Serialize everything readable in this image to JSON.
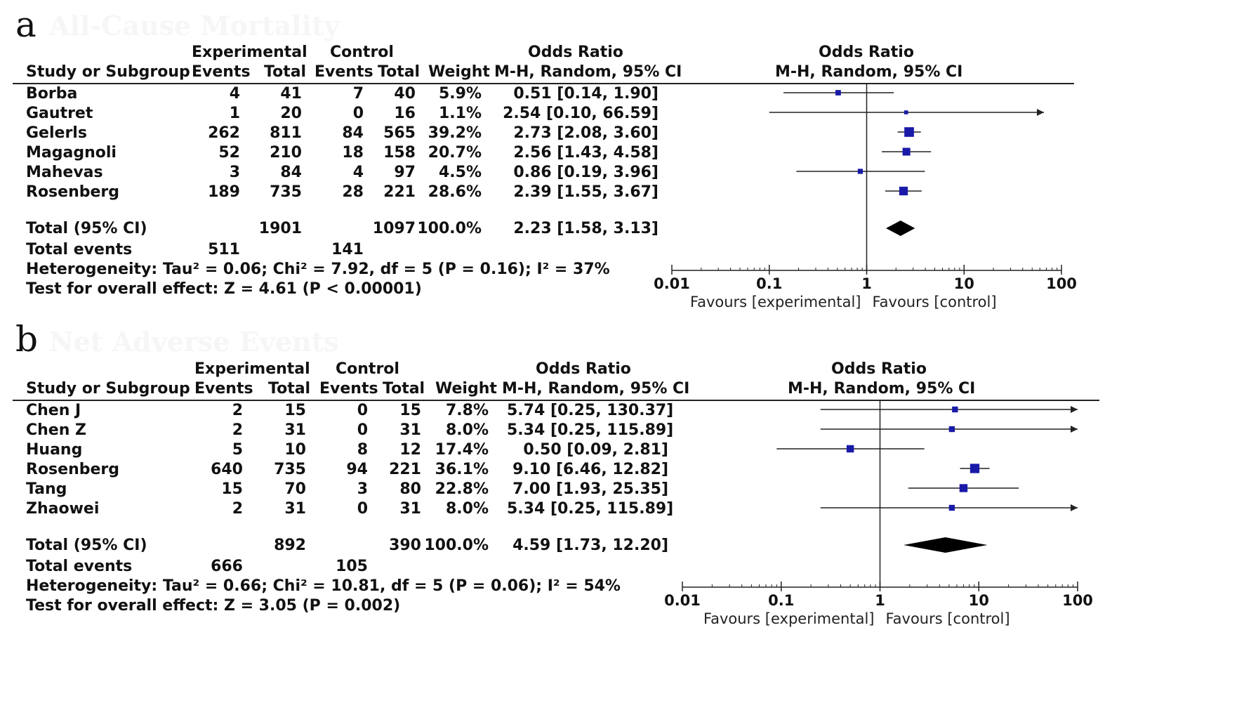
{
  "chart_data": [
    {
      "type": "forest",
      "panel_label": "a",
      "panel_title": "All-Cause Mortality",
      "header": {
        "group1": "Experimental",
        "group2": "Control",
        "effect": "Odds Ratio",
        "col_study": "Study or Subgroup",
        "col_events": "Events",
        "col_total": "Total",
        "col_weight": "Weight",
        "col_method": "M-H, Random, 95% CI",
        "plot_title": "Odds Ratio",
        "plot_method": "M-H, Random, 95% CI"
      },
      "studies": [
        {
          "name": "Borba",
          "exp_events": "4",
          "exp_total": "41",
          "ctl_events": "7",
          "ctl_total": "40",
          "weight": "5.9%",
          "ci_text": "0.51 [0.14, 1.90]",
          "or": 0.51,
          "lo": 0.14,
          "hi": 1.9
        },
        {
          "name": "Gautret",
          "exp_events": "1",
          "exp_total": "20",
          "ctl_events": "0",
          "ctl_total": "16",
          "weight": "1.1%",
          "ci_text": "2.54 [0.10, 66.59]",
          "or": 2.54,
          "lo": 0.1,
          "hi": 66.59
        },
        {
          "name": "Gelerls",
          "exp_events": "262",
          "exp_total": "811",
          "ctl_events": "84",
          "ctl_total": "565",
          "weight": "39.2%",
          "ci_text": "2.73 [2.08, 3.60]",
          "or": 2.73,
          "lo": 2.08,
          "hi": 3.6
        },
        {
          "name": "Magagnoli",
          "exp_events": "52",
          "exp_total": "210",
          "ctl_events": "18",
          "ctl_total": "158",
          "weight": "20.7%",
          "ci_text": "2.56 [1.43, 4.58]",
          "or": 2.56,
          "lo": 1.43,
          "hi": 4.58
        },
        {
          "name": "Mahevas",
          "exp_events": "3",
          "exp_total": "84",
          "ctl_events": "4",
          "ctl_total": "97",
          "weight": "4.5%",
          "ci_text": "0.86 [0.19, 3.96]",
          "or": 0.86,
          "lo": 0.19,
          "hi": 3.96
        },
        {
          "name": "Rosenberg",
          "exp_events": "189",
          "exp_total": "735",
          "ctl_events": "28",
          "ctl_total": "221",
          "weight": "28.6%",
          "ci_text": "2.39 [1.55, 3.67]",
          "or": 2.39,
          "lo": 1.55,
          "hi": 3.67
        }
      ],
      "total": {
        "label": "Total (95% CI)",
        "exp_total": "1901",
        "ctl_total": "1097",
        "weight": "100.0%",
        "ci_text": "2.23 [1.58, 3.13]",
        "or": 2.23,
        "lo": 1.58,
        "hi": 3.13
      },
      "total_events": {
        "label": "Total events",
        "exp": "511",
        "ctl": "141"
      },
      "heterogeneity": "Heterogeneity: Tau² = 0.06; Chi² = 7.92, df = 5 (P = 0.16); I² = 37%",
      "overall_effect": "Test for overall effect: Z = 4.61 (P < 0.00001)",
      "axis": {
        "scale": "log",
        "range": [
          0.01,
          100
        ],
        "ticks": [
          "0.01",
          "0.1",
          "1",
          "10",
          "100"
        ],
        "tick_values": [
          0.01,
          0.1,
          1,
          10,
          100
        ],
        "favours_left": "Favours [experimental]",
        "favours_right": "Favours [control]"
      }
    },
    {
      "type": "forest",
      "panel_label": "b",
      "panel_title": "Net Adverse Events",
      "header": {
        "group1": "Experimental",
        "group2": "Control",
        "effect": "Odds Ratio",
        "col_study": "Study or Subgroup",
        "col_events": "Events",
        "col_total": "Total",
        "col_weight": "Weight",
        "col_method": "M-H, Random, 95% CI",
        "plot_title": "Odds Ratio",
        "plot_method": "M-H, Random, 95% CI"
      },
      "studies": [
        {
          "name": "Chen J",
          "exp_events": "2",
          "exp_total": "15",
          "ctl_events": "0",
          "ctl_total": "15",
          "weight": "7.8%",
          "ci_text": "5.74 [0.25, 130.37]",
          "or": 5.74,
          "lo": 0.25,
          "hi": 130.37
        },
        {
          "name": "Chen Z",
          "exp_events": "2",
          "exp_total": "31",
          "ctl_events": "0",
          "ctl_total": "31",
          "weight": "8.0%",
          "ci_text": "5.34 [0.25, 115.89]",
          "or": 5.34,
          "lo": 0.25,
          "hi": 115.89
        },
        {
          "name": "Huang",
          "exp_events": "5",
          "exp_total": "10",
          "ctl_events": "8",
          "ctl_total": "12",
          "weight": "17.4%",
          "ci_text": "0.50 [0.09, 2.81]",
          "or": 0.5,
          "lo": 0.09,
          "hi": 2.81
        },
        {
          "name": "Rosenberg",
          "exp_events": "640",
          "exp_total": "735",
          "ctl_events": "94",
          "ctl_total": "221",
          "weight": "36.1%",
          "ci_text": "9.10 [6.46, 12.82]",
          "or": 9.1,
          "lo": 6.46,
          "hi": 12.82
        },
        {
          "name": "Tang",
          "exp_events": "15",
          "exp_total": "70",
          "ctl_events": "3",
          "ctl_total": "80",
          "weight": "22.8%",
          "ci_text": "7.00 [1.93, 25.35]",
          "or": 7.0,
          "lo": 1.93,
          "hi": 25.35
        },
        {
          "name": "Zhaowei",
          "exp_events": "2",
          "exp_total": "31",
          "ctl_events": "0",
          "ctl_total": "31",
          "weight": "8.0%",
          "ci_text": "5.34 [0.25, 115.89]",
          "or": 5.34,
          "lo": 0.25,
          "hi": 115.89
        }
      ],
      "total": {
        "label": "Total (95% CI)",
        "exp_total": "892",
        "ctl_total": "390",
        "weight": "100.0%",
        "ci_text": "4.59 [1.73, 12.20]",
        "or": 4.59,
        "lo": 1.73,
        "hi": 12.2
      },
      "total_events": {
        "label": "Total events",
        "exp": "666",
        "ctl": "105"
      },
      "heterogeneity": "Heterogeneity: Tau² = 0.66; Chi² = 10.81, df = 5 (P = 0.06); I² = 54%",
      "overall_effect": "Test for overall effect: Z = 3.05 (P = 0.002)",
      "axis": {
        "scale": "log",
        "range": [
          0.01,
          100
        ],
        "ticks": [
          "0.01",
          "0.1",
          "1",
          "10",
          "100"
        ],
        "tick_values": [
          0.01,
          0.1,
          1,
          10,
          100
        ],
        "favours_left": "Favours [experimental]",
        "favours_right": "Favours [control]"
      }
    }
  ],
  "colors": {
    "marker": "#1a1aa8",
    "line": "#222222",
    "diamond": "#000000"
  }
}
